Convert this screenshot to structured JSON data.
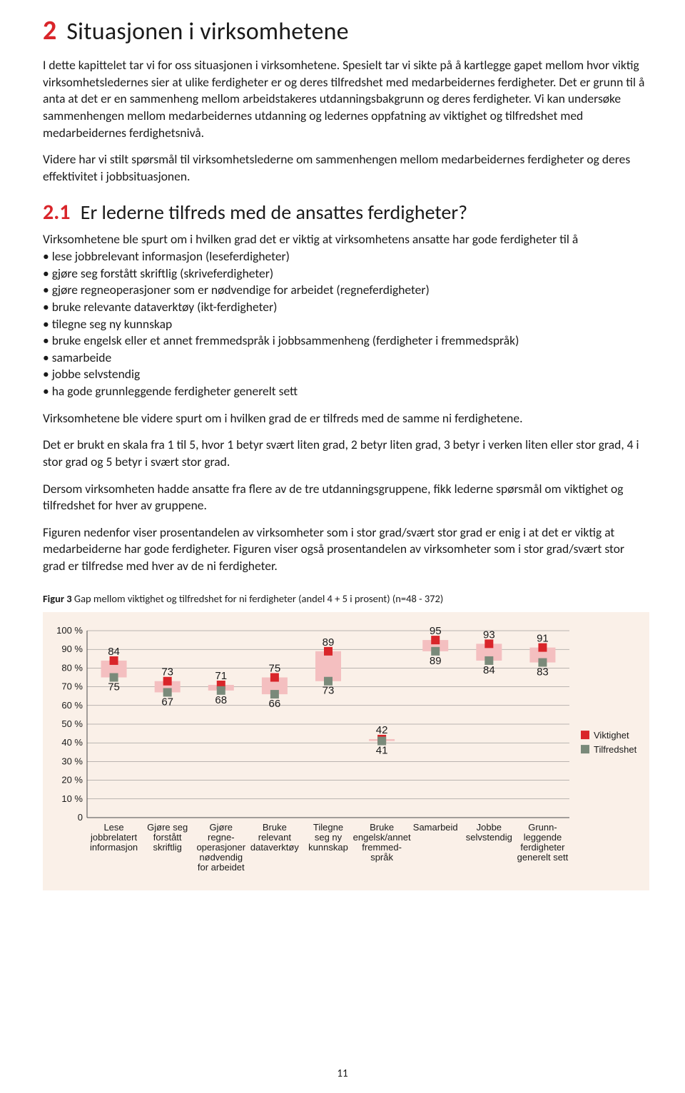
{
  "section": {
    "number": "2",
    "title": "Situasjonen i virksomhetene",
    "para1": "I dette kapittelet tar vi for oss situasjonen i virksomhetene. Spesielt tar vi sikte på å kartlegge gapet mellom hvor viktig virksomhetsledernes sier at ulike ferdigheter er og deres tilfredshet med medarbeidernes ferdigheter. Det er grunn til å anta at det er en sammenheng mellom arbeidstakeres utdanningsbakgrunn og deres ferdigheter. Vi kan undersøke sammenhengen mellom medarbeidernes utdanning og ledernes oppfatning av viktighet og tilfredshet med medarbeidernes ferdighetsnivå.",
    "para2": "Videre har vi stilt spørsmål til virksomhetslederne om sammenhengen mellom medarbeidernes ferdigheter og deres effektivitet i jobbsituasjonen."
  },
  "subsection": {
    "number": "2.1",
    "title": "Er lederne tilfreds med de ansattes ferdigheter?",
    "lead": "Virksomhetene ble spurt om i hvilken grad det er viktig at virksomhetens ansatte har gode ferdigheter til å",
    "bullets": [
      "lese jobbrelevant informasjon (leseferdigheter)",
      "gjøre seg forstått skriftlig (skriveferdigheter)",
      "gjøre regneoperasjoner som er nødvendige for arbeidet (regneferdigheter)",
      "bruke relevante dataverktøy (ikt-ferdigheter)",
      "tilegne seg ny kunnskap",
      "bruke engelsk eller et annet fremmedspråk i jobbsammenheng (ferdigheter i fremmedspråk)",
      "samarbeide",
      "jobbe selvstendig",
      "ha gode grunnleggende ferdigheter generelt sett"
    ],
    "para3": "Virksomhetene ble videre spurt om i hvilken grad de er tilfreds med de samme ni ferdighetene.",
    "para4": "Det er brukt en skala fra 1 til 5, hvor 1 betyr svært liten grad, 2 betyr liten grad, 3 betyr i verken liten eller stor grad, 4 i stor grad og 5 betyr i svært stor grad.",
    "para5": "Dersom virksomheten hadde ansatte fra flere av de tre utdanningsgruppene, fikk lederne spørsmål om viktighet og tilfredshet for hver av gruppene.",
    "para6": "Figuren nedenfor viser prosentandelen av virksomheter som i stor grad/svært stor grad er enig i at det er viktig at medarbeiderne har gode ferdigheter. Figuren viser også prosentandelen av virksomheter som i stor grad/svært stor grad er tilfredse med hver av de ni ferdigheter."
  },
  "figure": {
    "caption_bold": "Figur 3",
    "caption_rest": " Gap mellom viktighet og tilfredshet for ni ferdigheter (andel 4 + 5 i prosent) (n=48 - 372)",
    "legend": {
      "viktighet": "Viktighet",
      "tilfredshet": "Tilfredshet"
    },
    "page_number": "11"
  },
  "chart": {
    "type": "dot-range",
    "background_color": "#faf0e8",
    "grid_color": "#7a7a7a",
    "axis_color": "#4a4a4a",
    "marker_viktighet_color": "#d9252a",
    "marker_tilfredshet_color": "#7a8a7a",
    "range_fill": "#f4bfc0",
    "label_color": "#1a1a1a",
    "marker_size": 12,
    "range_width": 36,
    "label_fontsize": 13,
    "value_fontsize": 15,
    "ylim": [
      0,
      100
    ],
    "ytick_step": 10,
    "yticks": [
      "0",
      "10 %",
      "20 %",
      "30 %",
      "40 %",
      "50 %",
      "60 %",
      "70 %",
      "80 %",
      "90 %",
      "100 %"
    ],
    "categories": [
      "Lese\njobbrelatert\ninformasjon",
      "Gjøre seg\nforstått\nskriftlig",
      "Gjøre\nregne-\noperasjoner\nnødvendig\nfor arbeidet",
      "Bruke\nrelevant\ndataverktøy",
      "Tilegne\nseg ny\nkunnskap",
      "Bruke\nengelsk/annet\nfremmed-\nspråk",
      "Samarbeid",
      "Jobbe\nselvstendig",
      "Grunn-\nleggende\nferdigheter\ngenerelt sett"
    ],
    "viktighet": [
      84,
      73,
      71,
      75,
      89,
      42,
      95,
      93,
      91
    ],
    "tilfredshet": [
      75,
      67,
      68,
      66,
      73,
      41,
      89,
      84,
      83
    ]
  }
}
